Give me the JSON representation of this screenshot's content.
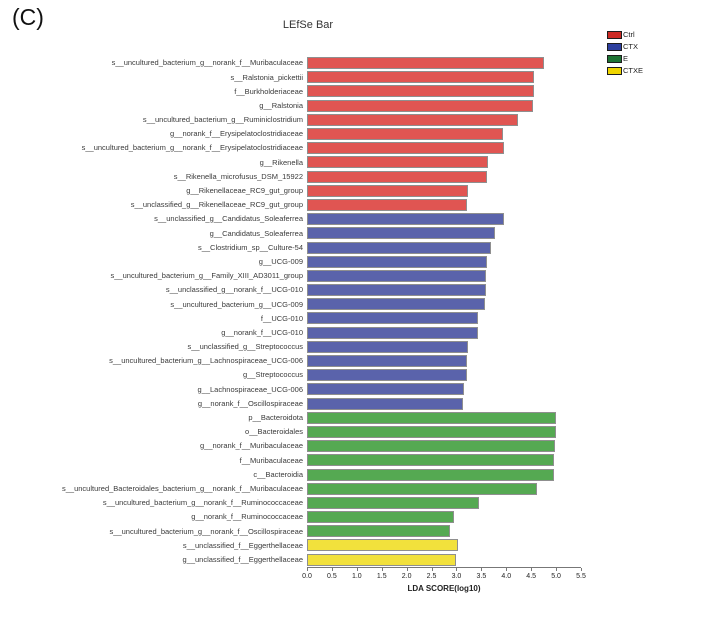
{
  "figure_label": "(C)",
  "chart": {
    "title": "LEfSe Bar",
    "xlabel": "LDA SCORE(log10)"
  },
  "legend": {
    "position": "top-right",
    "items": [
      {
        "label": "Ctrl",
        "color": "#cc2a24"
      },
      {
        "label": "CTX",
        "color": "#2d3f9e"
      },
      {
        "label": "E",
        "color": "#1e7434"
      },
      {
        "label": "CTXE",
        "color": "#efd500"
      }
    ]
  },
  "chart_data": {
    "type": "bar",
    "orientation": "horizontal",
    "title": "LEfSe Bar",
    "xlabel": "LDA SCORE(log10)",
    "xlim": [
      0,
      5.5
    ],
    "xticks": [
      0.0,
      0.5,
      1.0,
      1.5,
      2.0,
      2.5,
      3.0,
      3.5,
      4.0,
      4.5,
      5.0,
      5.5
    ],
    "grid": false,
    "groups": [
      "Ctrl",
      "CTX",
      "E",
      "CTXE"
    ],
    "bar_colors": {
      "Ctrl": "#e05552",
      "CTX": "#5a63ab",
      "E": "#55a952",
      "CTXE": "#f2e13c"
    },
    "bar_border_color": "#8f8f8f",
    "bars": [
      {
        "label": "s__uncultured_bacterium_g__norank_f__Muribaculaceae",
        "group": "Ctrl",
        "value": 4.78
      },
      {
        "label": "s__Ralstonia_pickettii",
        "group": "Ctrl",
        "value": 4.57
      },
      {
        "label": "f__Burkholderiaceae",
        "group": "Ctrl",
        "value": 4.57
      },
      {
        "label": "g__Ralstonia",
        "group": "Ctrl",
        "value": 4.55
      },
      {
        "label": "s__uncultured_bacterium_g__Ruminiclostridium",
        "group": "Ctrl",
        "value": 4.25
      },
      {
        "label": "g__norank_f__Erysipelatoclostridiaceae",
        "group": "Ctrl",
        "value": 3.94
      },
      {
        "label": "s__uncultured_bacterium_g__norank_f__Erysipelatoclostridiaceae",
        "group": "Ctrl",
        "value": 3.96
      },
      {
        "label": "g__Rikenella",
        "group": "Ctrl",
        "value": 3.64
      },
      {
        "label": "s__Rikenella_microfusus_DSM_15922",
        "group": "Ctrl",
        "value": 3.62
      },
      {
        "label": "g__Rikenellaceae_RC9_gut_group",
        "group": "Ctrl",
        "value": 3.24
      },
      {
        "label": "s__unclassified_g__Rikenellaceae_RC9_gut_group",
        "group": "Ctrl",
        "value": 3.22
      },
      {
        "label": "s__unclassified_g__Candidatus_Soleaferrea",
        "group": "CTX",
        "value": 3.96
      },
      {
        "label": "g__Candidatus_Soleaferrea",
        "group": "CTX",
        "value": 3.79
      },
      {
        "label": "s__Clostridium_sp__Culture-54",
        "group": "CTX",
        "value": 3.71
      },
      {
        "label": "g__UCG-009",
        "group": "CTX",
        "value": 3.63
      },
      {
        "label": "s__uncultured_bacterium_g__Family_XIII_AD3011_group",
        "group": "CTX",
        "value": 3.61
      },
      {
        "label": "s__unclassified_g__norank_f__UCG-010",
        "group": "CTX",
        "value": 3.61
      },
      {
        "label": "s__uncultured_bacterium_g__UCG-009",
        "group": "CTX",
        "value": 3.58
      },
      {
        "label": "f__UCG-010",
        "group": "CTX",
        "value": 3.44
      },
      {
        "label": "g__norank_f__UCG-010",
        "group": "CTX",
        "value": 3.44
      },
      {
        "label": "s__unclassified_g__Streptococcus",
        "group": "CTX",
        "value": 3.25
      },
      {
        "label": "s__uncultured_bacterium_g__Lachnospiraceae_UCG-006",
        "group": "CTX",
        "value": 3.23
      },
      {
        "label": "g__Streptococcus",
        "group": "CTX",
        "value": 3.22
      },
      {
        "label": "g__Lachnospiraceae_UCG-006",
        "group": "CTX",
        "value": 3.17
      },
      {
        "label": "g__norank_f__Oscillospiraceae",
        "group": "CTX",
        "value": 3.15
      },
      {
        "label": "p__Bacteroidota",
        "group": "E",
        "value": 5.02
      },
      {
        "label": "o__Bacteroidales",
        "group": "E",
        "value": 5.02
      },
      {
        "label": "g__norank_f__Muribaculaceae",
        "group": "E",
        "value": 5.0
      },
      {
        "label": "f__Muribaculaceae",
        "group": "E",
        "value": 4.98
      },
      {
        "label": "c__Bacteroidia",
        "group": "E",
        "value": 4.97
      },
      {
        "label": "s__uncultured_Bacteroidales_bacterium_g__norank_f__Muribaculaceae",
        "group": "E",
        "value": 4.63
      },
      {
        "label": "s__uncultured_bacterium_g__norank_f__Ruminococcaceae",
        "group": "E",
        "value": 3.46
      },
      {
        "label": "g__norank_f__Ruminococcaceae",
        "group": "E",
        "value": 2.96
      },
      {
        "label": "s__uncultured_bacterium_g__norank_f__Oscillospiraceae",
        "group": "E",
        "value": 2.89
      },
      {
        "label": "s__unclassified_f__Eggerthellaceae",
        "group": "CTXE",
        "value": 3.04
      },
      {
        "label": "g__unclassified_f__Eggerthellaceae",
        "group": "CTXE",
        "value": 3.0
      }
    ]
  }
}
